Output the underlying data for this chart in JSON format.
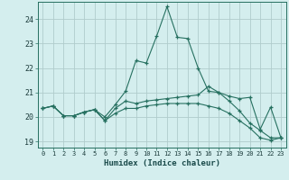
{
  "xlabel": "Humidex (Indice chaleur)",
  "background_color": "#d4eeee",
  "grid_color": "#b0cccc",
  "line_color": "#267060",
  "xlim": [
    -0.5,
    23.5
  ],
  "ylim": [
    18.75,
    24.7
  ],
  "yticks": [
    19,
    20,
    21,
    22,
    23,
    24
  ],
  "xticks": [
    0,
    1,
    2,
    3,
    4,
    5,
    6,
    7,
    8,
    9,
    10,
    11,
    12,
    13,
    14,
    15,
    16,
    17,
    18,
    19,
    20,
    21,
    22,
    23
  ],
  "line1_x": [
    0,
    1,
    2,
    3,
    4,
    5,
    6,
    7,
    8,
    9,
    10,
    11,
    12,
    13,
    14,
    15,
    16,
    17,
    18,
    19,
    20,
    21,
    22,
    23
  ],
  "line1_y": [
    20.35,
    20.45,
    20.05,
    20.05,
    20.2,
    20.3,
    20.0,
    20.5,
    21.05,
    22.3,
    22.2,
    23.3,
    24.5,
    23.25,
    23.2,
    22.0,
    21.05,
    21.0,
    20.85,
    20.75,
    20.8,
    19.5,
    20.4,
    19.15
  ],
  "line2_x": [
    0,
    1,
    2,
    3,
    4,
    5,
    6,
    7,
    8,
    9,
    10,
    11,
    12,
    13,
    14,
    15,
    16,
    17,
    18,
    19,
    20,
    21,
    22,
    23
  ],
  "line2_y": [
    20.35,
    20.45,
    20.05,
    20.05,
    20.2,
    20.3,
    19.85,
    20.35,
    20.65,
    20.55,
    20.65,
    20.7,
    20.75,
    20.8,
    20.85,
    20.9,
    21.25,
    21.0,
    20.65,
    20.25,
    19.75,
    19.45,
    19.15,
    19.15
  ],
  "line3_x": [
    0,
    1,
    2,
    3,
    4,
    5,
    6,
    7,
    8,
    9,
    10,
    11,
    12,
    13,
    14,
    15,
    16,
    17,
    18,
    19,
    20,
    21,
    22,
    23
  ],
  "line3_y": [
    20.35,
    20.45,
    20.05,
    20.05,
    20.2,
    20.3,
    19.85,
    20.15,
    20.35,
    20.35,
    20.45,
    20.5,
    20.55,
    20.55,
    20.55,
    20.55,
    20.45,
    20.35,
    20.15,
    19.85,
    19.55,
    19.15,
    19.05,
    19.15
  ]
}
